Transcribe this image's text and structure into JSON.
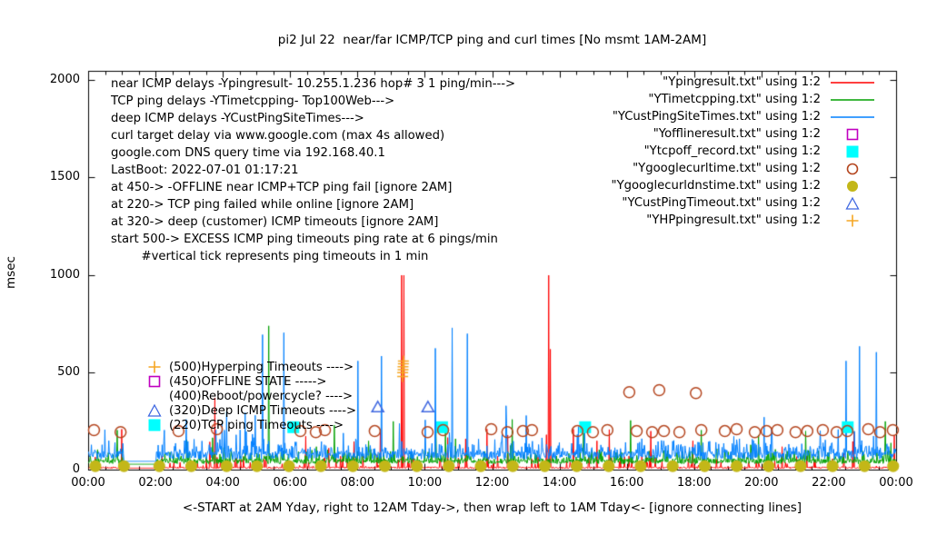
{
  "title": "pi2 Jul 22  near/far ICMP/TCP ping and curl times [No msmt 1AM-2AM]",
  "y_axis": {
    "label": "msec",
    "ticks": [
      0,
      500,
      1000,
      1500,
      2000
    ]
  },
  "x_axis": {
    "tick_labels": [
      "00:00",
      "02:00",
      "04:00",
      "06:00",
      "08:00",
      "10:00",
      "12:00",
      "14:00",
      "16:00",
      "18:00",
      "20:00",
      "22:00",
      "00:00"
    ],
    "note": "<-START at 2AM Yday, right to 12AM Tday->, then wrap left to 1AM Tday<- [ignore connecting lines]"
  },
  "info_block": {
    "lines": [
      "near ICMP delays -Ypingresult- 10.255.1.236 hop# 3 1 ping/min--->",
      "TCP ping delays -YTimetcpping- Top100Web--->",
      "deep ICMP delays -YCustPingSiteTimes--->",
      "curl target delay via www.google.com (max 4s allowed)",
      "google.com DNS query time via 192.168.40.1",
      "LastBoot: 2022-07-01 01:17:21",
      "at 450-> -OFFLINE near ICMP+TCP ping fail [ignore 2AM]",
      "at 220-> TCP ping failed while online [ignore 2AM]",
      "at 320-> deep (customer) ICMP timeouts [ignore 2AM]",
      "start 500-> EXCESS ICMP ping timeouts ping rate at 6 pings/min",
      "        #vertical tick represents ping timeouts in 1 min"
    ]
  },
  "annotations": {
    "items": [
      {
        "marker": "plus",
        "color": "#f5a623",
        "text": "(500)Hyperping Timeouts ---->"
      },
      {
        "marker": "square-open",
        "color": "#c000c0",
        "text": "(450)OFFLINE STATE ----->"
      },
      {
        "marker": "none",
        "color": "#000000",
        "text": "(400)Reboot/powercycle? ---->"
      },
      {
        "marker": "triangle-open",
        "color": "#4169e1",
        "text": "(320)Deep ICMP Timeouts ---->"
      },
      {
        "marker": "square-filled",
        "color": "#00ffff",
        "text": "(220)TCP ping Timeouts ---->"
      }
    ]
  },
  "chart_data": {
    "type": "line",
    "title": "pi2 Jul 22  near/far ICMP/TCP ping and curl times [No msmt 1AM-2AM]",
    "ylabel": "msec",
    "xlabel": "<-START at 2AM Yday, right to 12AM Tday->, then wrap left to 1AM Tday<- [ignore connecting lines]",
    "x_unit": "hour-of-day",
    "xlim_hours": [
      0,
      24
    ],
    "ylim": [
      0,
      2000
    ],
    "x_major_tick_hours": 2,
    "x_minor_tick_hours": 0.5,
    "no_measurement_window_hours": [
      1.05,
      2.0
    ],
    "grid": false,
    "legend_position": "top-right",
    "series": [
      {
        "file": "Ypingresult.txt",
        "legend_label": "\"Ypingresult.txt\" using 1:2",
        "description": "near ICMP ping delay, 1 ping/min",
        "kind": "line",
        "color": "#ff0000",
        "baseline": {
          "base": 8,
          "jitter": 8,
          "burst_prob": 0.1,
          "burst_amp": 60,
          "rare_prob": 0.015,
          "rare_amp": 200,
          "gap_value": 10,
          "seed": 101
        },
        "spikes_hour_ms": [
          [
            3.75,
            370
          ],
          [
            9.3,
            1000
          ],
          [
            9.37,
            1000
          ],
          [
            11.2,
            160
          ],
          [
            13.67,
            1000
          ],
          [
            13.72,
            620
          ],
          [
            14.4,
            210
          ],
          [
            15.1,
            150
          ],
          [
            16.7,
            200
          ],
          [
            17.95,
            150
          ],
          [
            20.6,
            120
          ],
          [
            23.93,
            180
          ]
        ]
      },
      {
        "file": "YTimetcpping.txt",
        "legend_label": "\"YTimetcpping.txt\" using 1:2",
        "description": "TCP ping delay to Top100Web sites",
        "kind": "line",
        "color": "#00a000",
        "baseline": {
          "base": 32,
          "jitter": 26,
          "burst_prob": 0.25,
          "burst_amp": 55,
          "rare_prob": 0.02,
          "rare_amp": 130,
          "gap_value": 30,
          "seed": 202
        },
        "spikes_hour_ms": [
          [
            0.85,
            205
          ],
          [
            5.35,
            740
          ],
          [
            7.3,
            230
          ],
          [
            9.05,
            250
          ],
          [
            10.6,
            200
          ],
          [
            12.58,
            260
          ],
          [
            14.7,
            230
          ],
          [
            16.1,
            255
          ],
          [
            18.2,
            205
          ],
          [
            19.9,
            180
          ],
          [
            21.3,
            200
          ],
          [
            23.66,
            250
          ]
        ]
      },
      {
        "file": "YCustPingSiteTimes.txt",
        "legend_label": "\"YCustPingSiteTimes.txt\" using 1:2",
        "description": "deep (customer) ICMP ping delay",
        "kind": "line",
        "color": "#0080ff",
        "baseline": {
          "base": 55,
          "jitter": 42,
          "burst_prob": 0.3,
          "burst_amp": 65,
          "rare_prob": 0.05,
          "rare_amp": 160,
          "gap_value": 45,
          "seed": 303
        },
        "spikes_hour_ms": [
          [
            2.9,
            260
          ],
          [
            4.1,
            300
          ],
          [
            5.16,
            695
          ],
          [
            5.8,
            705
          ],
          [
            8.0,
            560
          ],
          [
            8.7,
            585
          ],
          [
            10.3,
            625
          ],
          [
            10.8,
            730
          ],
          [
            11.25,
            700
          ],
          [
            12.4,
            330
          ],
          [
            13.0,
            280
          ],
          [
            22.5,
            560
          ],
          [
            22.9,
            635
          ],
          [
            23.4,
            605
          ]
        ]
      },
      {
        "file": "Yofflineresult.txt",
        "legend_label": "\"Yofflineresult.txt\" using 1:2",
        "description": "OFFLINE state events at 450 (none today)",
        "kind": "points",
        "marker": "square-open",
        "color": "#c000c0",
        "points_hour_ms": []
      },
      {
        "file": "Ytcpoff_record.txt",
        "legend_label": "\"Ytcpoff_record.txt\" using 1:2",
        "description": "TCP ping failed while online, at 220",
        "kind": "points",
        "marker": "square-filled",
        "color": "#00ffff",
        "points_hour_ms": [
          [
            6.08,
            220
          ],
          [
            10.5,
            220
          ],
          [
            14.75,
            220
          ],
          [
            22.55,
            220
          ]
        ]
      },
      {
        "file": "Ygooglecurltime.txt",
        "legend_label": "\"Ygooglecurltime.txt\" using 1:2",
        "description": "curl www.google.com total time",
        "kind": "points",
        "marker": "circle-open",
        "color": "#b4451e",
        "points_hour_ms": [
          [
            0.16,
            205
          ],
          [
            0.95,
            195
          ],
          [
            2.67,
            200
          ],
          [
            3.81,
            210
          ],
          [
            6.29,
            200
          ],
          [
            6.75,
            195
          ],
          [
            7.02,
            205
          ],
          [
            8.5,
            200
          ],
          [
            10.07,
            195
          ],
          [
            10.53,
            205
          ],
          [
            11.96,
            210
          ],
          [
            12.44,
            195
          ],
          [
            12.9,
            200
          ],
          [
            13.17,
            205
          ],
          [
            14.52,
            200
          ],
          [
            14.98,
            195
          ],
          [
            15.41,
            205
          ],
          [
            16.06,
            400
          ],
          [
            16.28,
            200
          ],
          [
            16.74,
            195
          ],
          [
            16.95,
            410
          ],
          [
            17.09,
            200
          ],
          [
            17.55,
            195
          ],
          [
            18.04,
            395
          ],
          [
            18.2,
            205
          ],
          [
            18.9,
            200
          ],
          [
            19.25,
            210
          ],
          [
            19.79,
            195
          ],
          [
            20.14,
            200
          ],
          [
            20.46,
            205
          ],
          [
            21.0,
            195
          ],
          [
            21.35,
            200
          ],
          [
            21.81,
            205
          ],
          [
            22.22,
            195
          ],
          [
            22.54,
            200
          ],
          [
            23.16,
            210
          ],
          [
            23.51,
            195
          ],
          [
            23.89,
            205
          ]
        ]
      },
      {
        "file": "Ygooglecurldnstime.txt",
        "legend_label": "\"Ygooglecurldnstime.txt\" using 1:2",
        "description": "google.com DNS query time via 192.168.40.1",
        "kind": "points",
        "marker": "circle-filled",
        "color": "#c3b718",
        "points_hour_ms": [
          [
            0.2,
            20
          ],
          [
            1.05,
            20
          ],
          [
            2.1,
            20
          ],
          [
            3.05,
            20
          ],
          [
            4.1,
            20
          ],
          [
            5.0,
            20
          ],
          [
            5.95,
            20
          ],
          [
            6.9,
            20
          ],
          [
            7.85,
            20
          ],
          [
            8.8,
            20
          ],
          [
            9.75,
            20
          ],
          [
            10.7,
            20
          ],
          [
            11.65,
            20
          ],
          [
            12.6,
            20
          ],
          [
            13.55,
            20
          ],
          [
            14.5,
            20
          ],
          [
            15.45,
            20
          ],
          [
            16.4,
            20
          ],
          [
            17.35,
            20
          ],
          [
            18.3,
            20
          ],
          [
            19.25,
            20
          ],
          [
            20.2,
            20
          ],
          [
            21.15,
            20
          ],
          [
            22.1,
            20
          ],
          [
            23.05,
            20
          ],
          [
            23.9,
            20
          ]
        ]
      },
      {
        "file": "YCustPingTimeout.txt",
        "legend_label": "\"YCustPingTimeout.txt\" using 1:2",
        "description": "deep ICMP timeouts, at 320",
        "kind": "points",
        "marker": "triangle-open",
        "color": "#4169e1",
        "points_hour_ms": [
          [
            8.59,
            320
          ],
          [
            10.08,
            320
          ]
        ]
      },
      {
        "file": "YHPpingresult.txt",
        "legend_label": "\"YHPpingresult.txt\" using 1:2",
        "description": "EXCESS (hyper) ping timeouts, from 500",
        "kind": "points",
        "marker": "plus",
        "color": "#f5a623",
        "points_hour_ms": [
          [
            9.33,
            480
          ],
          [
            9.33,
            500
          ],
          [
            9.34,
            515
          ],
          [
            9.34,
            530
          ],
          [
            9.35,
            545
          ],
          [
            9.35,
            560
          ]
        ]
      }
    ]
  }
}
